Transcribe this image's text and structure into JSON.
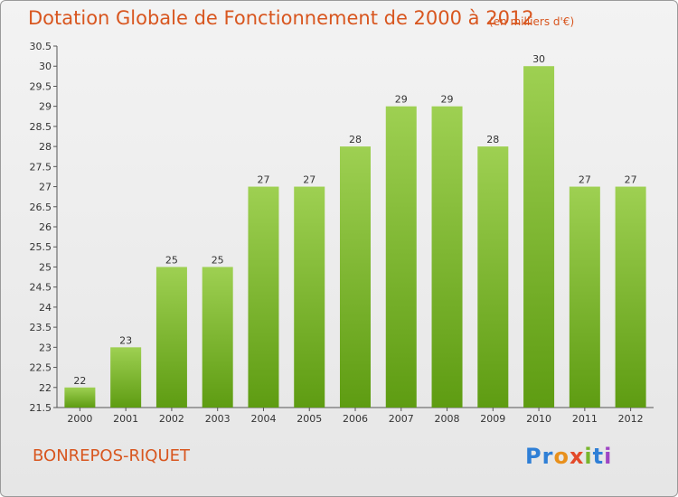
{
  "header": {
    "title": "Dotation Globale de Fonctionnement de 2000 à 2012",
    "subtitle": "(en milliers d'€)"
  },
  "footer": {
    "place": "BONREPOS-RIQUET",
    "logo": [
      "Pr",
      "o",
      "x",
      "i",
      "t",
      "i"
    ]
  },
  "colors": {
    "title": "#d8561f",
    "bar_top": "#9ed052",
    "bar_bottom": "#5e9c12"
  },
  "chart_data": {
    "type": "bar",
    "title": "Dotation Globale de Fonctionnement de 2000 à 2012",
    "subtitle": "(en milliers d'€)",
    "categories": [
      "2000",
      "2001",
      "2002",
      "2003",
      "2004",
      "2005",
      "2006",
      "2007",
      "2008",
      "2009",
      "2010",
      "2011",
      "2012"
    ],
    "values": [
      22,
      23,
      25,
      25,
      27,
      27,
      28,
      29,
      29,
      28,
      30,
      27,
      27
    ],
    "ylim": [
      21.5,
      30.5
    ],
    "yticks": [
      "21.5",
      "22",
      "22.5",
      "23",
      "23.5",
      "24",
      "24.5",
      "25",
      "25.5",
      "26",
      "26.5",
      "27",
      "27.5",
      "28",
      "28.5",
      "29",
      "29.5",
      "30",
      "30.5"
    ],
    "xlabel": "",
    "ylabel": "",
    "grid": false,
    "legend": "none"
  }
}
